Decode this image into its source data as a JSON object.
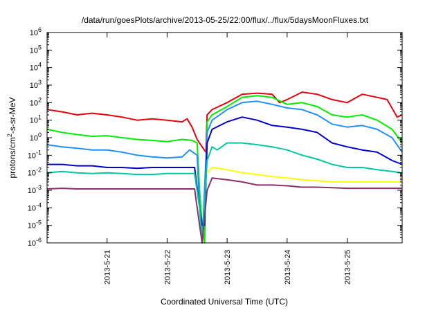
{
  "chart_data": {
    "type": "line",
    "title": "/data/run/goesPlots/archive/2013-05-25/22:00/flux/../flux/5daysMoonFluxes.txt",
    "xlabel": "Coordinated Universal Time (UTC)",
    "ylabel": {
      "pre": "protons/cm",
      "sup": "2",
      "post": "-s-sr-MeV"
    },
    "x_ticks": [
      "2013-5-21",
      "2013-5-22",
      "2013-5-23",
      "2013-5-24",
      "2013-5-25"
    ],
    "xlim": [
      "2013-05-20 00:00",
      "2013-05-25 22:00"
    ],
    "y_scale": "log",
    "ylim": [
      1e-06,
      1000000.0
    ],
    "y_ticks": [
      {
        "base": "10",
        "exp": "-6"
      },
      {
        "base": "10",
        "exp": "-5"
      },
      {
        "base": "10",
        "exp": "-4"
      },
      {
        "base": "10",
        "exp": "-3"
      },
      {
        "base": "10",
        "exp": "-2"
      },
      {
        "base": "10",
        "exp": "-1"
      },
      {
        "base": "10",
        "exp": "0"
      },
      {
        "base": "10",
        "exp": "1"
      },
      {
        "base": "10",
        "exp": "2"
      },
      {
        "base": "10",
        "exp": "3"
      },
      {
        "base": "10",
        "exp": "4"
      },
      {
        "base": "10",
        "exp": "5"
      },
      {
        "base": "10",
        "exp": "6"
      }
    ],
    "grid": false,
    "legend": "none",
    "series": [
      {
        "color": "#e8000b",
        "points": [
          [
            "2013-05-20 00:00",
            40
          ],
          [
            "2013-05-20 06:00",
            30
          ],
          [
            "2013-05-20 12:00",
            20
          ],
          [
            "2013-05-20 18:00",
            25
          ],
          [
            "2013-05-21 00:00",
            20
          ],
          [
            "2013-05-21 06:00",
            15
          ],
          [
            "2013-05-21 12:00",
            10
          ],
          [
            "2013-05-21 18:00",
            12
          ],
          [
            "2013-05-22 00:00",
            10
          ],
          [
            "2013-05-22 06:00",
            8
          ],
          [
            "2013-05-22 08:00",
            12
          ],
          [
            "2013-05-22 10:00",
            4
          ],
          [
            "2013-05-22 12:00",
            0.8
          ],
          [
            "2013-05-22 14:00",
            0.3
          ],
          [
            "2013-05-22 15:30",
            0.15
          ],
          [
            "2013-05-22 16:00",
            20
          ],
          [
            "2013-05-22 18:00",
            40
          ],
          [
            "2013-05-23 00:00",
            100
          ],
          [
            "2013-05-23 06:00",
            300
          ],
          [
            "2013-05-23 12:00",
            350
          ],
          [
            "2013-05-23 18:00",
            300
          ],
          [
            "2013-05-23 21:00",
            100
          ],
          [
            "2013-05-24 00:00",
            150
          ],
          [
            "2013-05-24 06:00",
            400
          ],
          [
            "2013-05-24 12:00",
            300
          ],
          [
            "2013-05-24 18:00",
            150
          ],
          [
            "2013-05-25 00:00",
            100
          ],
          [
            "2013-05-25 06:00",
            300
          ],
          [
            "2013-05-25 12:00",
            200
          ],
          [
            "2013-05-25 16:00",
            150
          ],
          [
            "2013-05-25 20:00",
            15
          ],
          [
            "2013-05-25 22:00",
            20
          ]
        ]
      },
      {
        "color": "#00ee00",
        "points": [
          [
            "2013-05-20 00:00",
            3
          ],
          [
            "2013-05-20 06:00",
            2
          ],
          [
            "2013-05-20 12:00",
            1.5
          ],
          [
            "2013-05-20 18:00",
            1.2
          ],
          [
            "2013-05-21 00:00",
            1.3
          ],
          [
            "2013-05-21 06:00",
            1
          ],
          [
            "2013-05-21 12:00",
            0.8
          ],
          [
            "2013-05-21 18:00",
            0.7
          ],
          [
            "2013-05-22 00:00",
            0.6
          ],
          [
            "2013-05-22 06:00",
            0.8
          ],
          [
            "2013-05-22 10:00",
            0.7
          ],
          [
            "2013-05-22 12:00",
            0.5
          ],
          [
            "2013-05-22 13:00",
            0.001
          ],
          [
            "2013-05-22 14:00",
            1e-05
          ],
          [
            "2013-05-22 15:00",
            1e-06
          ],
          [
            "2013-05-22 16:00",
            8
          ],
          [
            "2013-05-22 18:00",
            20
          ],
          [
            "2013-05-23 00:00",
            60
          ],
          [
            "2013-05-23 06:00",
            200
          ],
          [
            "2013-05-23 12:00",
            250
          ],
          [
            "2013-05-23 18:00",
            200
          ],
          [
            "2013-05-24 00:00",
            80
          ],
          [
            "2013-05-24 06:00",
            100
          ],
          [
            "2013-05-24 12:00",
            60
          ],
          [
            "2013-05-24 18:00",
            20
          ],
          [
            "2013-05-25 00:00",
            15
          ],
          [
            "2013-05-25 06:00",
            20
          ],
          [
            "2013-05-25 12:00",
            10
          ],
          [
            "2013-05-25 18:00",
            3
          ],
          [
            "2013-05-25 22:00",
            0.5
          ]
        ]
      },
      {
        "color": "#1e90ff",
        "points": [
          [
            "2013-05-20 00:00",
            0.4
          ],
          [
            "2013-05-20 06:00",
            0.3
          ],
          [
            "2013-05-20 12:00",
            0.25
          ],
          [
            "2013-05-20 18:00",
            0.2
          ],
          [
            "2013-05-21 00:00",
            0.2
          ],
          [
            "2013-05-21 06:00",
            0.15
          ],
          [
            "2013-05-21 12:00",
            0.1
          ],
          [
            "2013-05-21 18:00",
            0.08
          ],
          [
            "2013-05-22 00:00",
            0.07
          ],
          [
            "2013-05-22 06:00",
            0.08
          ],
          [
            "2013-05-22 09:00",
            0.2
          ],
          [
            "2013-05-22 12:00",
            0.1
          ],
          [
            "2013-05-22 13:00",
            0.0001
          ],
          [
            "2013-05-22 14:00",
            1e-06
          ],
          [
            "2013-05-22 16:00",
            2
          ],
          [
            "2013-05-22 18:00",
            10
          ],
          [
            "2013-05-23 00:00",
            40
          ],
          [
            "2013-05-23 06:00",
            100
          ],
          [
            "2013-05-23 12:00",
            120
          ],
          [
            "2013-05-23 18:00",
            80
          ],
          [
            "2013-05-24 00:00",
            50
          ],
          [
            "2013-05-24 06:00",
            40
          ],
          [
            "2013-05-24 12:00",
            20
          ],
          [
            "2013-05-24 18:00",
            6
          ],
          [
            "2013-05-25 00:00",
            4
          ],
          [
            "2013-05-25 06:00",
            5
          ],
          [
            "2013-05-25 12:00",
            3
          ],
          [
            "2013-05-25 18:00",
            1
          ],
          [
            "2013-05-25 22:00",
            0.15
          ]
        ]
      },
      {
        "color": "#0000cd",
        "points": [
          [
            "2013-05-20 00:00",
            0.03
          ],
          [
            "2013-05-20 06:00",
            0.03
          ],
          [
            "2013-05-20 12:00",
            0.025
          ],
          [
            "2013-05-20 18:00",
            0.025
          ],
          [
            "2013-05-21 00:00",
            0.02
          ],
          [
            "2013-05-21 06:00",
            0.02
          ],
          [
            "2013-05-21 12:00",
            0.018
          ],
          [
            "2013-05-21 18:00",
            0.02
          ],
          [
            "2013-05-22 00:00",
            0.02
          ],
          [
            "2013-05-22 06:00",
            0.02
          ],
          [
            "2013-05-22 11:00",
            0.02
          ],
          [
            "2013-05-22 13:00",
            0.0001
          ],
          [
            "2013-05-22 14:00",
            1e-05
          ],
          [
            "2013-05-22 15:00",
            1e-05
          ],
          [
            "2013-05-22 16:00",
            0.5
          ],
          [
            "2013-05-22 18:00",
            3
          ],
          [
            "2013-05-23 00:00",
            8
          ],
          [
            "2013-05-23 06:00",
            15
          ],
          [
            "2013-05-23 12:00",
            10
          ],
          [
            "2013-05-23 18:00",
            5
          ],
          [
            "2013-05-24 00:00",
            4
          ],
          [
            "2013-05-24 06:00",
            3
          ],
          [
            "2013-05-24 12:00",
            2
          ],
          [
            "2013-05-24 18:00",
            0.5
          ],
          [
            "2013-05-25 00:00",
            0.3
          ],
          [
            "2013-05-25 06:00",
            0.2
          ],
          [
            "2013-05-25 12:00",
            0.15
          ],
          [
            "2013-05-25 18:00",
            0.05
          ],
          [
            "2013-05-25 22:00",
            0.03
          ]
        ]
      },
      {
        "color": "#00c8a0",
        "points": [
          [
            "2013-05-20 00:00",
            0.01
          ],
          [
            "2013-05-20 06:00",
            0.012
          ],
          [
            "2013-05-20 12:00",
            0.01
          ],
          [
            "2013-05-20 18:00",
            0.009
          ],
          [
            "2013-05-21 00:00",
            0.01
          ],
          [
            "2013-05-21 06:00",
            0.009
          ],
          [
            "2013-05-21 12:00",
            0.008
          ],
          [
            "2013-05-21 18:00",
            0.008
          ],
          [
            "2013-05-22 00:00",
            0.009
          ],
          [
            "2013-05-22 06:00",
            0.009
          ],
          [
            "2013-05-22 11:00",
            0.009
          ],
          [
            "2013-05-22 13:00",
            0.0001
          ],
          [
            "2013-05-22 14:00",
            1e-06
          ],
          [
            "2013-05-22 16:00",
            0.05
          ],
          [
            "2013-05-22 18:00",
            0.3
          ],
          [
            "2013-05-22 20:00",
            0.2
          ],
          [
            "2013-05-23 00:00",
            0.5
          ],
          [
            "2013-05-23 06:00",
            0.5
          ],
          [
            "2013-05-23 12:00",
            0.4
          ],
          [
            "2013-05-23 18:00",
            0.3
          ],
          [
            "2013-05-24 00:00",
            0.2
          ],
          [
            "2013-05-24 06:00",
            0.1
          ],
          [
            "2013-05-24 12:00",
            0.06
          ],
          [
            "2013-05-24 18:00",
            0.03
          ],
          [
            "2013-05-25 00:00",
            0.02
          ],
          [
            "2013-05-25 06:00",
            0.02
          ],
          [
            "2013-05-25 12:00",
            0.015
          ],
          [
            "2013-05-25 18:00",
            0.012
          ],
          [
            "2013-05-25 22:00",
            0.01
          ]
        ]
      },
      {
        "color": "#ffff00",
        "points": [
          [
            "2013-05-22 16:00",
            0.01
          ],
          [
            "2013-05-22 18:00",
            0.02
          ],
          [
            "2013-05-23 00:00",
            0.015
          ],
          [
            "2013-05-23 06:00",
            0.01
          ],
          [
            "2013-05-23 12:00",
            0.008
          ],
          [
            "2013-05-23 18:00",
            0.006
          ],
          [
            "2013-05-24 00:00",
            0.005
          ],
          [
            "2013-05-24 06:00",
            0.004
          ],
          [
            "2013-05-24 12:00",
            0.0035
          ],
          [
            "2013-05-24 18:00",
            0.003
          ],
          [
            "2013-05-25 00:00",
            0.003
          ],
          [
            "2013-05-25 06:00",
            0.003
          ],
          [
            "2013-05-25 12:00",
            0.003
          ],
          [
            "2013-05-25 18:00",
            0.003
          ],
          [
            "2013-05-25 22:00",
            0.003
          ]
        ]
      },
      {
        "color": "#8b2f6b",
        "points": [
          [
            "2013-05-20 00:00",
            0.0012
          ],
          [
            "2013-05-20 06:00",
            0.0013
          ],
          [
            "2013-05-20 12:00",
            0.0012
          ],
          [
            "2013-05-20 18:00",
            0.0012
          ],
          [
            "2013-05-21 00:00",
            0.0012
          ],
          [
            "2013-05-21 06:00",
            0.0012
          ],
          [
            "2013-05-21 12:00",
            0.0012
          ],
          [
            "2013-05-21 18:00",
            0.0012
          ],
          [
            "2013-05-22 00:00",
            0.0012
          ],
          [
            "2013-05-22 06:00",
            0.0012
          ],
          [
            "2013-05-22 11:00",
            0.0012
          ],
          [
            "2013-05-22 13:00",
            1e-05
          ],
          [
            "2013-05-22 14:00",
            1e-06
          ],
          [
            "2013-05-22 16:00",
            0.001
          ],
          [
            "2013-05-22 18:00",
            0.005
          ],
          [
            "2013-05-23 00:00",
            0.004
          ],
          [
            "2013-05-23 06:00",
            0.003
          ],
          [
            "2013-05-23 12:00",
            0.002
          ],
          [
            "2013-05-23 18:00",
            0.002
          ],
          [
            "2013-05-24 00:00",
            0.0018
          ],
          [
            "2013-05-24 06:00",
            0.0015
          ],
          [
            "2013-05-24 12:00",
            0.0015
          ],
          [
            "2013-05-24 18:00",
            0.0014
          ],
          [
            "2013-05-25 00:00",
            0.0013
          ],
          [
            "2013-05-25 06:00",
            0.0013
          ],
          [
            "2013-05-25 12:00",
            0.0013
          ],
          [
            "2013-05-25 18:00",
            0.0013
          ],
          [
            "2013-05-25 22:00",
            0.0013
          ]
        ]
      }
    ]
  }
}
